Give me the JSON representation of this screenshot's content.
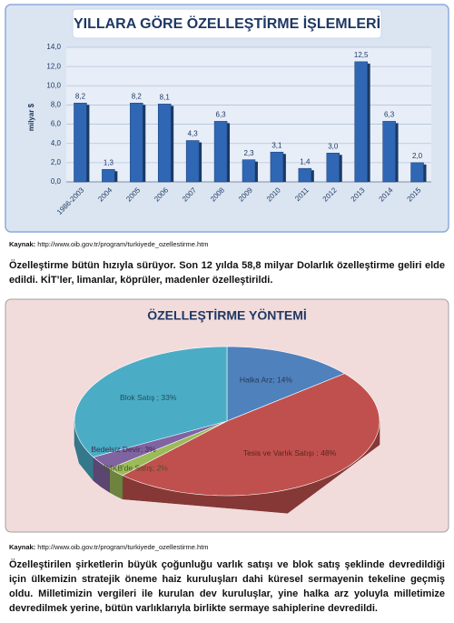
{
  "chart_data": [
    {
      "type": "bar",
      "title": "YILLARA GÖRE ÖZELLEŞTİRME İŞLEMLERİ",
      "y_label": "milyar $",
      "categories": [
        "1986-2003",
        "2004",
        "2005",
        "2006",
        "2007",
        "2008",
        "2009",
        "2010",
        "2011",
        "2012",
        "2013",
        "2014",
        "2015"
      ],
      "values": [
        8.2,
        1.3,
        8.2,
        8.1,
        4.3,
        6.3,
        2.3,
        3.1,
        1.4,
        3.0,
        12.5,
        6.3,
        2.0
      ],
      "value_labels": [
        "8,2",
        "1,3",
        "8,2",
        "8,1",
        "4,3",
        "6,3",
        "2,3",
        "3,1",
        "1,4",
        "3,0",
        "12,5",
        "6,3",
        "2,0"
      ],
      "color": "#2f67b5",
      "ylim": [
        0,
        14
      ],
      "yticks": [
        {
          "value": 0,
          "label": "0,0"
        },
        {
          "value": 2,
          "label": "2,0"
        },
        {
          "value": 4,
          "label": "4,0"
        },
        {
          "value": 6,
          "label": "6,0"
        },
        {
          "value": 8,
          "label": "8,0"
        },
        {
          "value": 10,
          "label": "10,0"
        },
        {
          "value": 12,
          "label": "12,0"
        },
        {
          "value": 14,
          "label": "14,0"
        }
      ],
      "grid": true
    },
    {
      "type": "pie",
      "title": "ÖZELLEŞTİRME YÖNTEMİ",
      "values": [
        14,
        48,
        2,
        3,
        33
      ],
      "value_labels": [
        "Halka Arz; 14%",
        "Tesis ve Varlık Satışı ; 48%",
        "İMKB'de Satış; 2%",
        "Bedelsiz Devir; 3%",
        "Blok Satış ; 33%"
      ],
      "colors": [
        "#4f81bd",
        "#c0504d",
        "#9bbb59",
        "#8064a2",
        "#4bacc6"
      ]
    }
  ],
  "document": {
    "source_1": {
      "label": "Kaynak:",
      "url": "http://www.oib.gov.tr/program/turkiyede_ozellestirme.htm"
    },
    "paragraph_1": "Özelleştirme bütün hızıyla sürüyor. Son 12 yılda 58,8 milyar Dolarlık özelleştirme geliri elde edildi. KİT’ler, limanlar, köprüler, madenler özelleştirildi.",
    "source_2": {
      "label": "Kaynak:",
      "url": "http://www.oib.gov.tr/program/turkiyede_ozellestirme.htm"
    },
    "paragraph_2": "Özelleştirilen şirketlerin büyük çoğunluğu varlık satışı ve blok satış şeklinde devredildiği için ülkemizin stratejik öneme haiz kuruluşları dahi küresel sermayenin tekeline geçmiş oldu. Milletimizin vergileri ile kurulan dev kuruluşlar, yine halka arz yoluyla milletimize devredilmek yerine, bütün varlıklarıyla birlikte sermaye sahiplerine devredildi."
  }
}
